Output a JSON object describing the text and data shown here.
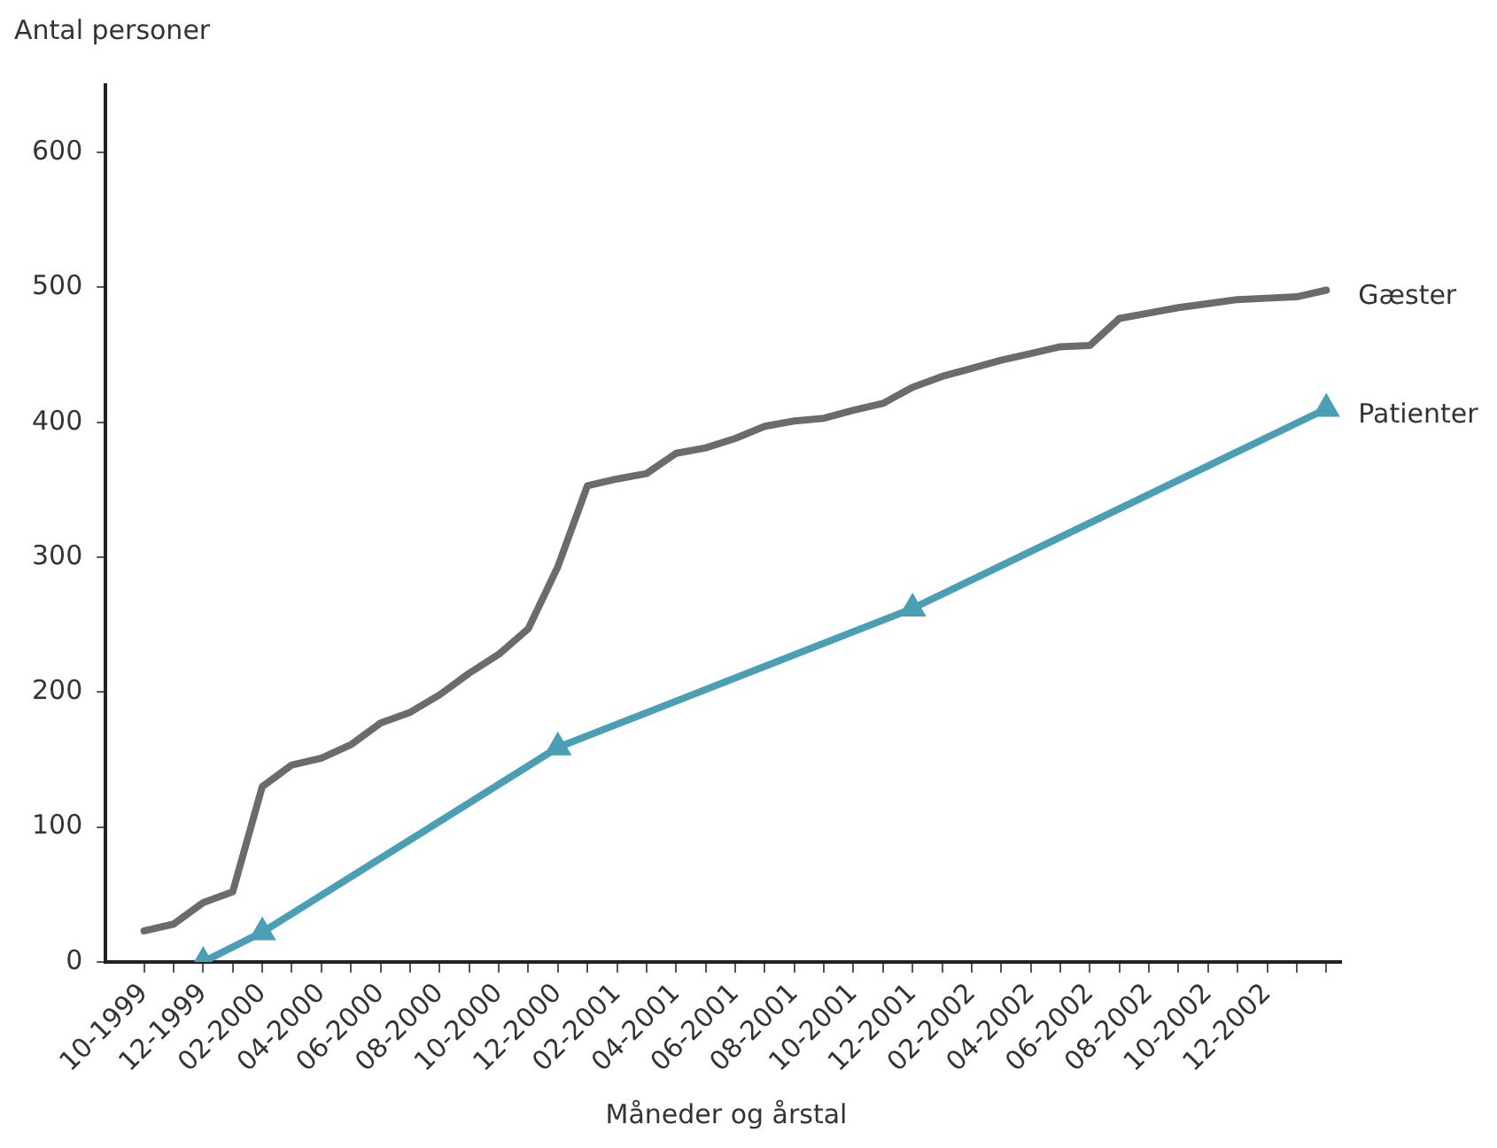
{
  "chart_data": {
    "type": "line",
    "ylabel": "Antal personer",
    "xlabel": "Måneder og årstal",
    "categories": [
      "10-1999",
      null,
      "12-1999",
      null,
      "02-2000",
      null,
      "04-2000",
      null,
      "06-2000",
      null,
      "08-2000",
      null,
      "10-2000",
      null,
      "12-2000",
      null,
      "02-2001",
      null,
      "04-2001",
      null,
      "06-2001",
      null,
      "08-2001",
      null,
      "10-2001",
      null,
      "12-2001",
      null,
      "02-2002",
      null,
      "04-2002",
      null,
      "06-2002",
      null,
      "08-2002",
      null,
      "10-2002",
      null,
      "12-2002",
      null,
      null
    ],
    "series": [
      {
        "name": "Gæster",
        "color": "#6d6a6b",
        "marker": "none",
        "values": [
          23,
          28,
          44,
          52,
          130,
          146,
          151,
          161,
          177,
          185,
          198,
          214,
          228,
          247,
          293,
          353,
          358,
          362,
          377,
          381,
          388,
          397,
          401,
          403,
          409,
          414,
          426,
          434,
          440,
          446,
          451,
          456,
          457,
          477,
          481,
          485,
          488,
          491,
          492,
          493,
          498
        ]
      },
      {
        "name": "Patienter",
        "color": "#4a9fb5",
        "marker": "triangle",
        "values": [
          null,
          null,
          0,
          null,
          22,
          null,
          null,
          null,
          null,
          null,
          null,
          null,
          null,
          null,
          159,
          null,
          null,
          null,
          null,
          null,
          null,
          null,
          null,
          null,
          null,
          null,
          262,
          null,
          null,
          null,
          null,
          null,
          null,
          null,
          null,
          null,
          null,
          null,
          null,
          null,
          410
        ]
      }
    ],
    "ylim": [
      0,
      650
    ],
    "yticks": [
      0,
      100,
      200,
      300,
      400,
      500,
      600
    ],
    "grid": false,
    "legend": false
  }
}
